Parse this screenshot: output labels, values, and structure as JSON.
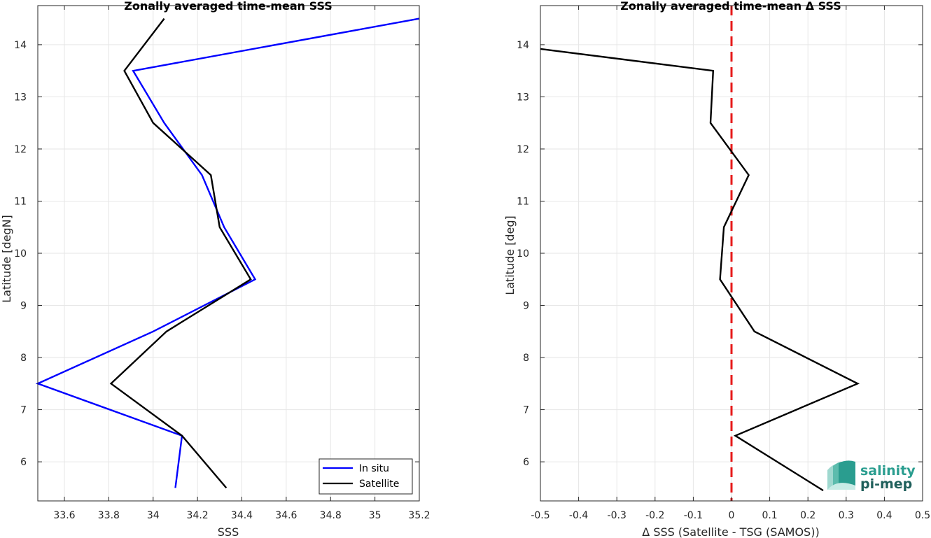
{
  "chart_data": [
    {
      "type": "line",
      "title": "Zonally averaged time-mean SSS",
      "xlabel": "SSS",
      "ylabel": "Latitude [degN]",
      "xlim": [
        33.48,
        35.2
      ],
      "ylim": [
        5.25,
        14.75
      ],
      "xticks": [
        "33.6",
        "33.8",
        "34",
        "34.2",
        "34.4",
        "34.6",
        "34.8",
        "35",
        "35.2"
      ],
      "yticks": [
        "6",
        "7",
        "8",
        "9",
        "10",
        "11",
        "12",
        "13",
        "14"
      ],
      "grid": true,
      "legend": "bottom-right",
      "series": [
        {
          "name": "In situ",
          "color": "#0000ff",
          "x": [
            34.1,
            34.13,
            33.48,
            34.0,
            34.46,
            34.32,
            34.22,
            34.05,
            33.91,
            35.2
          ],
          "y": [
            5.5,
            6.5,
            7.5,
            8.5,
            9.5,
            10.5,
            11.5,
            12.5,
            13.5,
            14.5
          ]
        },
        {
          "name": "Satellite",
          "color": "#000000",
          "x": [
            34.33,
            34.13,
            33.81,
            34.06,
            34.44,
            34.3,
            34.26,
            34.0,
            33.87,
            34.05
          ],
          "y": [
            5.5,
            6.5,
            7.5,
            8.5,
            9.5,
            10.5,
            11.5,
            12.5,
            13.5,
            14.5
          ]
        }
      ]
    },
    {
      "type": "line",
      "title": "Zonally averaged time-mean Δ SSS",
      "xlabel": "Δ SSS (Satellite - TSG (SAMOS))",
      "ylabel": "Latitude [deg]",
      "xlim": [
        -0.5,
        0.5
      ],
      "ylim": [
        5.25,
        14.75
      ],
      "xticks": [
        "-0.5",
        "-0.4",
        "-0.3",
        "-0.2",
        "-0.1",
        "0",
        "0.1",
        "0.2",
        "0.3",
        "0.4",
        "0.5"
      ],
      "yticks": [
        "6",
        "7",
        "8",
        "9",
        "10",
        "11",
        "12",
        "13",
        "14"
      ],
      "grid": true,
      "reference_line": {
        "x": 0,
        "color": "#e61a1a",
        "style": "dashed"
      },
      "series": [
        {
          "color": "#000000",
          "x": [
            0.24,
            0.01,
            0.33,
            0.06,
            -0.03,
            -0.02,
            0.045,
            -0.055,
            -0.048,
            -0.5
          ],
          "y": [
            5.45,
            6.5,
            7.5,
            8.5,
            9.5,
            10.5,
            11.5,
            12.5,
            13.5,
            13.92
          ]
        }
      ]
    }
  ],
  "logo": {
    "line1": "salinity",
    "line2": "pi-mep",
    "color_text": "#2a9d8f",
    "color_dark": "#1f5f5b"
  }
}
